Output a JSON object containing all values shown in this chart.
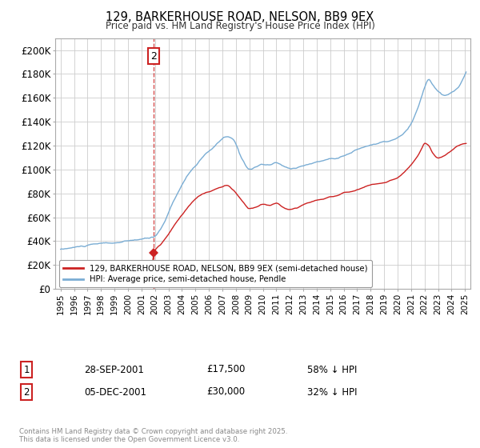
{
  "title": "129, BARKERHOUSE ROAD, NELSON, BB9 9EX",
  "subtitle": "Price paid vs. HM Land Registry's House Price Index (HPI)",
  "ylim": [
    0,
    210000
  ],
  "yticks": [
    0,
    20000,
    40000,
    60000,
    80000,
    100000,
    120000,
    140000,
    160000,
    180000,
    200000
  ],
  "ytick_labels": [
    "£0",
    "£20K",
    "£40K",
    "£60K",
    "£80K",
    "£100K",
    "£120K",
    "£140K",
    "£160K",
    "£180K",
    "£200K"
  ],
  "hpi_color": "#7aadd4",
  "price_color": "#cc2222",
  "vline_color": "#cc2222",
  "annotation_box_color": "#cc2222",
  "legend_label_price": "129, BARKERHOUSE ROAD, NELSON, BB9 9EX (semi-detached house)",
  "legend_label_hpi": "HPI: Average price, semi-detached house, Pendle",
  "copyright_text": "Contains HM Land Registry data © Crown copyright and database right 2025.\nThis data is licensed under the Open Government Licence v3.0.",
  "background_color": "#ffffff",
  "grid_color": "#cccccc",
  "transactions": [
    {
      "num": "1",
      "date": "28-SEP-2001",
      "price": "£17,500",
      "hpi": "58% ↓ HPI"
    },
    {
      "num": "2",
      "date": "05-DEC-2001",
      "price": "£30,000",
      "hpi": "32% ↓ HPI"
    }
  ],
  "vline_x": 2001.92
}
